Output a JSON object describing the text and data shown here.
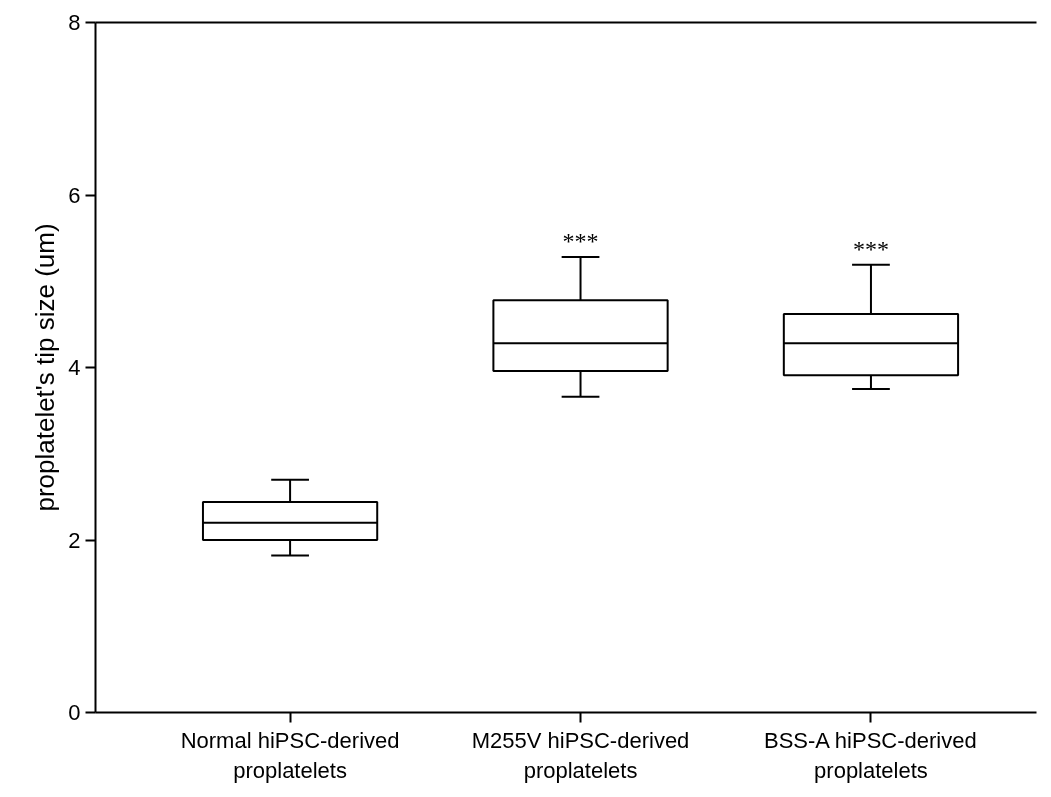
{
  "chart_data": {
    "type": "box",
    "ylabel": "proplatelet's tip size (um)",
    "categories": [
      "Normal hiPSC-derived\nproplatelets",
      "M255V hiPSC-derived\nproplatelets",
      "BSS-A hiPSC-derived\nproplatelets"
    ],
    "boxes": [
      {
        "low": 1.82,
        "q1": 2.0,
        "median": 2.2,
        "q3": 2.44,
        "high": 2.7
      },
      {
        "low": 3.66,
        "q1": 3.96,
        "median": 4.28,
        "q3": 4.78,
        "high": 5.28
      },
      {
        "low": 3.75,
        "q1": 3.91,
        "median": 4.28,
        "q3": 4.62,
        "high": 5.19
      }
    ],
    "color": "#000000",
    "value_labels": [
      null,
      "***",
      "***"
    ],
    "ylim": [
      0,
      8
    ],
    "yticks": [
      0,
      2,
      4,
      6,
      8
    ],
    "grid": false
  }
}
